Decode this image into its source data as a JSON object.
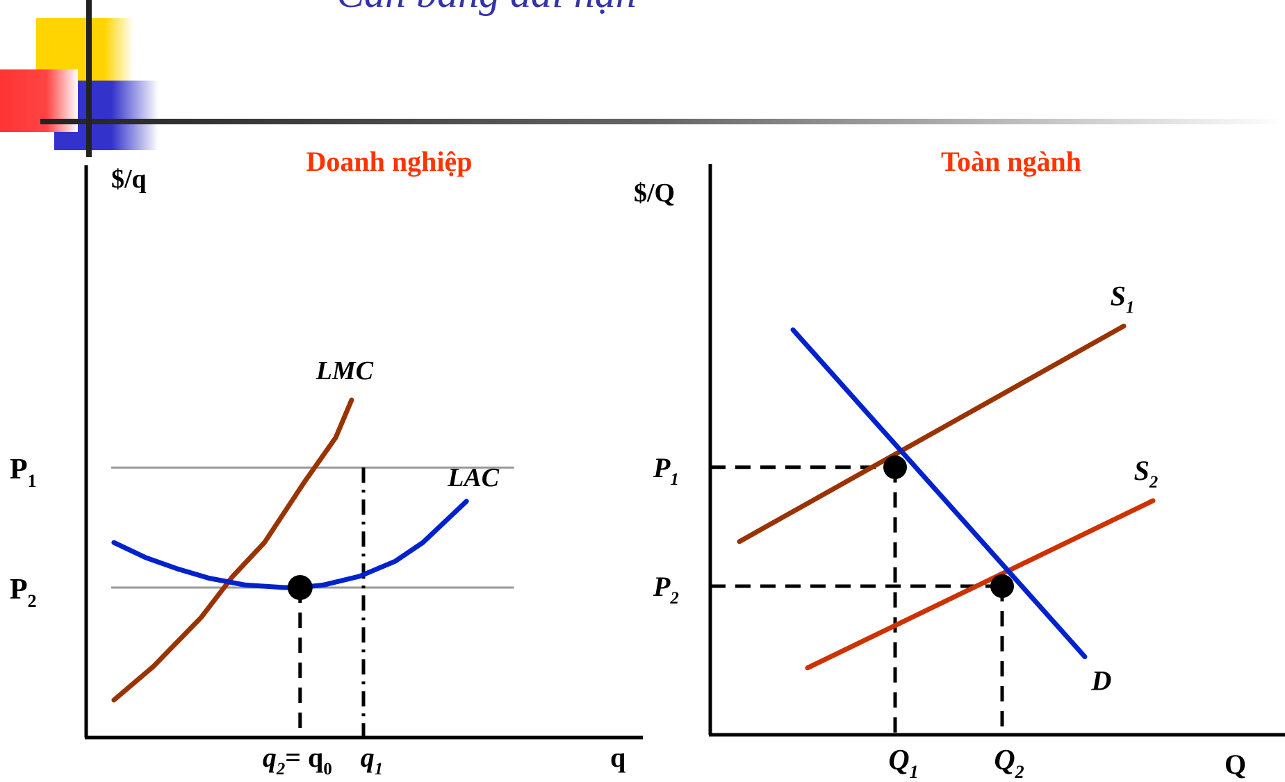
{
  "slide": {
    "title": "Cân bằng dài hạn"
  },
  "chart_data": [
    {
      "type": "line",
      "title": "Doanh nghiệp",
      "ylabel": "$/q",
      "xlabel": "q",
      "y_tick_labels": {
        "P1": {
          "main": "P",
          "sub": "1"
        },
        "P2": {
          "main": "P",
          "sub": "2"
        }
      },
      "x_tick_labels": {
        "q0": {
          "main": "q",
          "sub": "2",
          "suffix": "= q",
          "suffix_sub": "0"
        },
        "q1": {
          "main": "q",
          "sub": "1"
        }
      },
      "price_levels": {
        "P1": 7.2,
        "P2": 4.0
      },
      "quantities": {
        "q0": 5.4,
        "q1": 7.0
      },
      "series": [
        {
          "name": "LMC",
          "color": "#993300",
          "points": [
            [
              0.7,
              1.0
            ],
            [
              1.7,
              1.9
            ],
            [
              2.9,
              3.2
            ],
            [
              3.7,
              4.3
            ],
            [
              4.5,
              5.2
            ],
            [
              5.5,
              6.8
            ],
            [
              6.3,
              8.0
            ],
            [
              6.7,
              9.0
            ]
          ]
        },
        {
          "name": "LAC",
          "color": "#0022cc",
          "points": [
            [
              0.7,
              5.2
            ],
            [
              1.5,
              4.8
            ],
            [
              2.3,
              4.5
            ],
            [
              3.1,
              4.25
            ],
            [
              4.0,
              4.07
            ],
            [
              5.0,
              4.0
            ],
            [
              5.4,
              4.0
            ],
            [
              6.0,
              4.07
            ],
            [
              6.9,
              4.3
            ],
            [
              7.8,
              4.7
            ],
            [
              8.5,
              5.2
            ],
            [
              9.3,
              6.0
            ],
            [
              9.6,
              6.3
            ]
          ]
        }
      ],
      "annotations": [
        "horizontal lines at P1 and P2",
        "dashed vertical at q0",
        "dash-dot vertical at q1",
        "marker at intersection (q0, P2)"
      ]
    },
    {
      "type": "line",
      "title": "Toàn ngành",
      "ylabel": "$/Q",
      "xlabel": "Q",
      "y_tick_labels": {
        "P1": {
          "main": "P",
          "sub": "1"
        },
        "P2": {
          "main": "P",
          "sub": "2"
        }
      },
      "x_tick_labels": {
        "Q1": {
          "main": "Q",
          "sub": "1"
        },
        "Q2": {
          "main": "Q",
          "sub": "2"
        }
      },
      "price_levels": {
        "P1": 7.2,
        "P2": 4.0
      },
      "quantities": {
        "Q1": 3.8,
        "Q2": 6.0
      },
      "series": [
        {
          "name": "S",
          "sub": "1",
          "color": "#993300",
          "points": [
            [
              0.6,
              5.2
            ],
            [
              8.5,
              11.0
            ]
          ]
        },
        {
          "name": "S",
          "sub": "2",
          "color": "#cc3300",
          "points": [
            [
              2.0,
              1.8
            ],
            [
              9.1,
              6.3
            ]
          ]
        },
        {
          "name": "D",
          "sub": "",
          "color": "#0022cc",
          "points": [
            [
              1.7,
              10.9
            ],
            [
              7.7,
              2.1
            ]
          ]
        }
      ],
      "equilibria": [
        {
          "x": 3.8,
          "y": 7.2
        },
        {
          "x": 6.0,
          "y": 4.0
        }
      ]
    }
  ],
  "colors": {
    "axis": "#000000",
    "grid_line": "#999999",
    "title_red": "#ff3300",
    "title_blue": "#3333aa"
  }
}
